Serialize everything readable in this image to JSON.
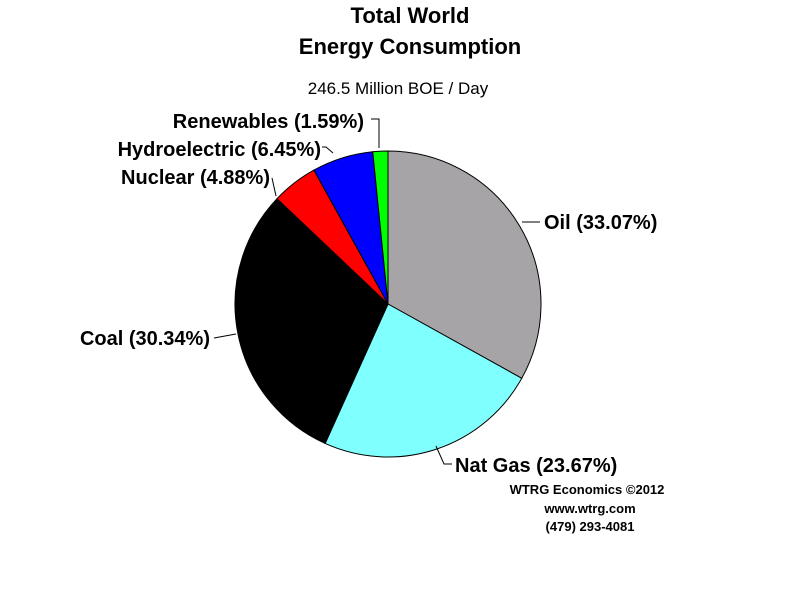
{
  "chart_data": {
    "type": "pie",
    "title": [
      "Total World",
      "Energy Consumption"
    ],
    "subtitle": "246.5 Million BOE / Day",
    "slices": [
      {
        "name": "Oil",
        "value": 33.07,
        "label": "Oil (33.07%)",
        "color": "#a6a4a6"
      },
      {
        "name": "Nat Gas",
        "value": 23.67,
        "label": "Nat Gas (23.67%)",
        "color": "#80ffff"
      },
      {
        "name": "Coal",
        "value": 30.34,
        "label": "Coal (30.34%)",
        "color": "#000000"
      },
      {
        "name": "Nuclear",
        "value": 4.88,
        "label": "Nuclear (4.88%)",
        "color": "#ff0000"
      },
      {
        "name": "Hydroelectric",
        "value": 6.45,
        "label": "Hydroelectric (6.45%)",
        "color": "#0000ff"
      },
      {
        "name": "Renewables",
        "value": 1.59,
        "label": "Renewables (1.59%)",
        "color": "#00ff00"
      }
    ],
    "start_angle": "12 o'clock",
    "direction": "clockwise"
  },
  "credits": [
    "WTRG Economics  ©2012",
    "www.wtrg.com",
    "(479) 293-4081"
  ]
}
